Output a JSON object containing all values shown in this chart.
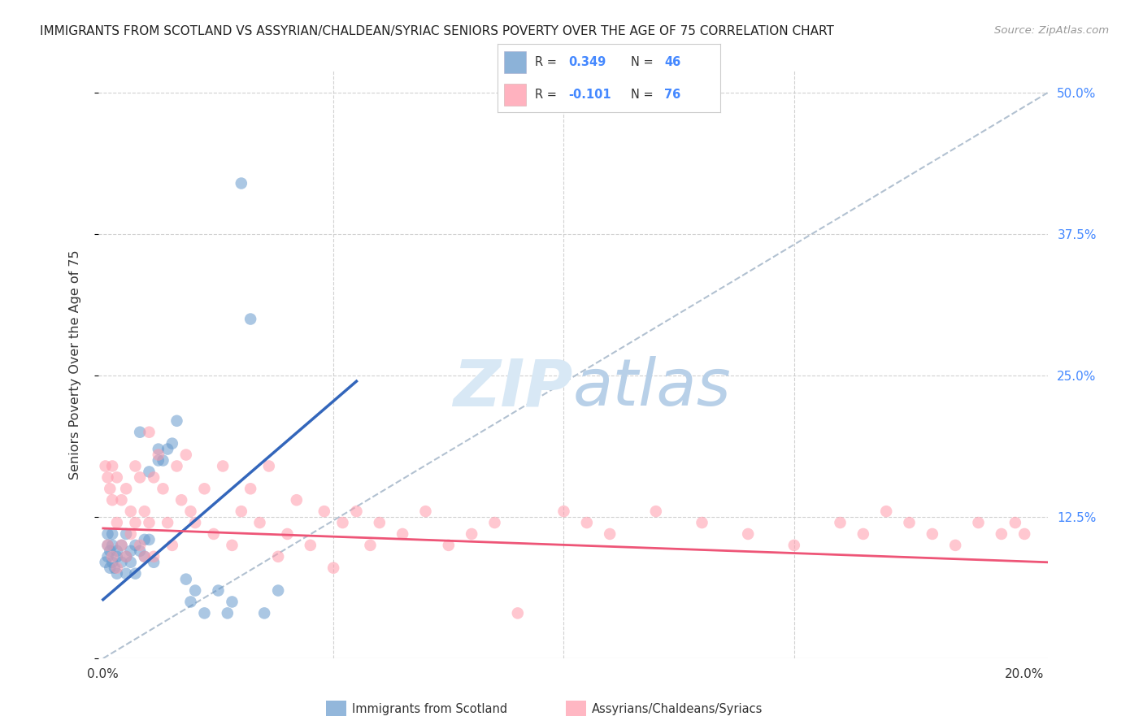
{
  "title": "IMMIGRANTS FROM SCOTLAND VS ASSYRIAN/CHALDEAN/SYRIAC SENIORS POVERTY OVER THE AGE OF 75 CORRELATION CHART",
  "source": "Source: ZipAtlas.com",
  "ylabel": "Seniors Poverty Over the Age of 75",
  "ylim": [
    0.0,
    0.52
  ],
  "xlim": [
    -0.001,
    0.205
  ],
  "right_yticklabels": [
    "",
    "12.5%",
    "25.0%",
    "37.5%",
    "50.0%"
  ],
  "legend_R1": "R = 0.349",
  "legend_N1": "N = 46",
  "legend_R2": "R = -0.101",
  "legend_N2": "N = 76",
  "blue_color": "#6699CC",
  "pink_color": "#FF99AA",
  "blue_line_color": "#3366BB",
  "pink_line_color": "#EE5577",
  "diag_color": "#AABBCC",
  "grid_color": "#CCCCCC",
  "title_color": "#222222",
  "source_color": "#999999",
  "right_tick_color": "#4488FF",
  "blue_scatter_x": [
    0.0005,
    0.001,
    0.001,
    0.001,
    0.0015,
    0.0015,
    0.002,
    0.002,
    0.002,
    0.0025,
    0.003,
    0.003,
    0.003,
    0.004,
    0.004,
    0.005,
    0.005,
    0.005,
    0.006,
    0.006,
    0.007,
    0.007,
    0.008,
    0.008,
    0.009,
    0.009,
    0.01,
    0.01,
    0.011,
    0.012,
    0.012,
    0.013,
    0.014,
    0.015,
    0.016,
    0.018,
    0.019,
    0.02,
    0.022,
    0.025,
    0.027,
    0.028,
    0.03,
    0.032,
    0.035,
    0.038
  ],
  "blue_scatter_y": [
    0.085,
    0.11,
    0.09,
    0.1,
    0.095,
    0.08,
    0.11,
    0.085,
    0.1,
    0.08,
    0.09,
    0.075,
    0.095,
    0.085,
    0.1,
    0.09,
    0.11,
    0.075,
    0.095,
    0.085,
    0.1,
    0.075,
    0.095,
    0.2,
    0.09,
    0.105,
    0.105,
    0.165,
    0.085,
    0.175,
    0.185,
    0.175,
    0.185,
    0.19,
    0.21,
    0.07,
    0.05,
    0.06,
    0.04,
    0.06,
    0.04,
    0.05,
    0.42,
    0.3,
    0.04,
    0.06
  ],
  "pink_scatter_x": [
    0.0005,
    0.001,
    0.001,
    0.0015,
    0.002,
    0.002,
    0.002,
    0.003,
    0.003,
    0.003,
    0.004,
    0.004,
    0.005,
    0.005,
    0.006,
    0.006,
    0.007,
    0.007,
    0.008,
    0.008,
    0.009,
    0.009,
    0.01,
    0.01,
    0.011,
    0.011,
    0.012,
    0.013,
    0.014,
    0.015,
    0.016,
    0.017,
    0.018,
    0.019,
    0.02,
    0.022,
    0.024,
    0.026,
    0.028,
    0.03,
    0.032,
    0.034,
    0.036,
    0.038,
    0.04,
    0.042,
    0.045,
    0.048,
    0.05,
    0.052,
    0.055,
    0.058,
    0.06,
    0.065,
    0.07,
    0.075,
    0.08,
    0.085,
    0.09,
    0.1,
    0.105,
    0.11,
    0.12,
    0.13,
    0.14,
    0.15,
    0.16,
    0.165,
    0.17,
    0.175,
    0.18,
    0.185,
    0.19,
    0.195,
    0.198,
    0.2
  ],
  "pink_scatter_y": [
    0.17,
    0.16,
    0.1,
    0.15,
    0.17,
    0.09,
    0.14,
    0.12,
    0.16,
    0.08,
    0.14,
    0.1,
    0.15,
    0.09,
    0.13,
    0.11,
    0.12,
    0.17,
    0.1,
    0.16,
    0.13,
    0.09,
    0.2,
    0.12,
    0.16,
    0.09,
    0.18,
    0.15,
    0.12,
    0.1,
    0.17,
    0.14,
    0.18,
    0.13,
    0.12,
    0.15,
    0.11,
    0.17,
    0.1,
    0.13,
    0.15,
    0.12,
    0.17,
    0.09,
    0.11,
    0.14,
    0.1,
    0.13,
    0.08,
    0.12,
    0.13,
    0.1,
    0.12,
    0.11,
    0.13,
    0.1,
    0.11,
    0.12,
    0.04,
    0.13,
    0.12,
    0.11,
    0.13,
    0.12,
    0.11,
    0.1,
    0.12,
    0.11,
    0.13,
    0.12,
    0.11,
    0.1,
    0.12,
    0.11,
    0.12,
    0.11
  ],
  "blue_line_x": [
    0.0,
    0.055
  ],
  "blue_line_y": [
    0.052,
    0.245
  ],
  "pink_line_x": [
    0.0,
    0.205
  ],
  "pink_line_y": [
    0.115,
    0.085
  ]
}
